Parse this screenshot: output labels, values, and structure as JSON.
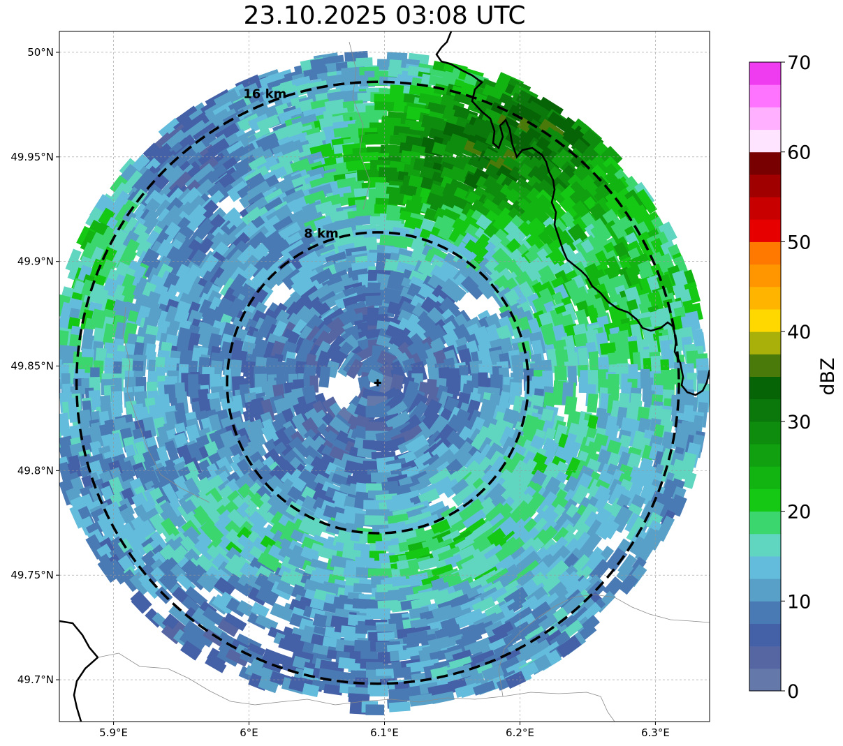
{
  "title": "23.10.2025 03:08 UTC",
  "map": {
    "lon_range": [
      5.86,
      6.34
    ],
    "lat_range": [
      49.68,
      50.01
    ],
    "radar_site": {
      "lon": 6.095,
      "lat": 49.842
    },
    "x_ticks": [
      {
        "value": 5.9,
        "label": "5.9°E"
      },
      {
        "value": 6.0,
        "label": "6°E"
      },
      {
        "value": 6.1,
        "label": "6.1°E"
      },
      {
        "value": 6.2,
        "label": "6.2°E"
      },
      {
        "value": 6.3,
        "label": "6.3°E"
      }
    ],
    "y_ticks": [
      {
        "value": 50.0,
        "label": "50°N"
      },
      {
        "value": 49.95,
        "label": "49.95°N"
      },
      {
        "value": 49.9,
        "label": "49.9°N"
      },
      {
        "value": 49.85,
        "label": "49.85°N"
      },
      {
        "value": 49.8,
        "label": "49.8°N"
      },
      {
        "value": 49.75,
        "label": "49.75°N"
      },
      {
        "value": 49.7,
        "label": "49.7°N"
      }
    ],
    "range_rings": [
      {
        "radius_km": 8,
        "label": "8 km"
      },
      {
        "radius_km": 16,
        "label": "16 km"
      }
    ],
    "gridlines": true
  },
  "colorbar": {
    "label": "dBZ",
    "ticks": [
      "0",
      "10",
      "20",
      "30",
      "40",
      "50",
      "60",
      "70"
    ],
    "range": [
      0,
      70
    ],
    "step": 2.5,
    "colors": [
      "#6478aa",
      "#5666a2",
      "#4460a6",
      "#4a7ab4",
      "#58a0c8",
      "#64bcdc",
      "#60d6c0",
      "#3cd66e",
      "#14c814",
      "#12b412",
      "#10a010",
      "#0e8c0e",
      "#0a780a",
      "#066406",
      "#4a7a0a",
      "#aab00a",
      "#ffd800",
      "#ffb400",
      "#ff9600",
      "#ff7800",
      "#e60000",
      "#c80000",
      "#a00000",
      "#780000",
      "#ffe4ff",
      "#ffb0ff",
      "#ff74ff",
      "#f03cf0"
    ]
  }
}
